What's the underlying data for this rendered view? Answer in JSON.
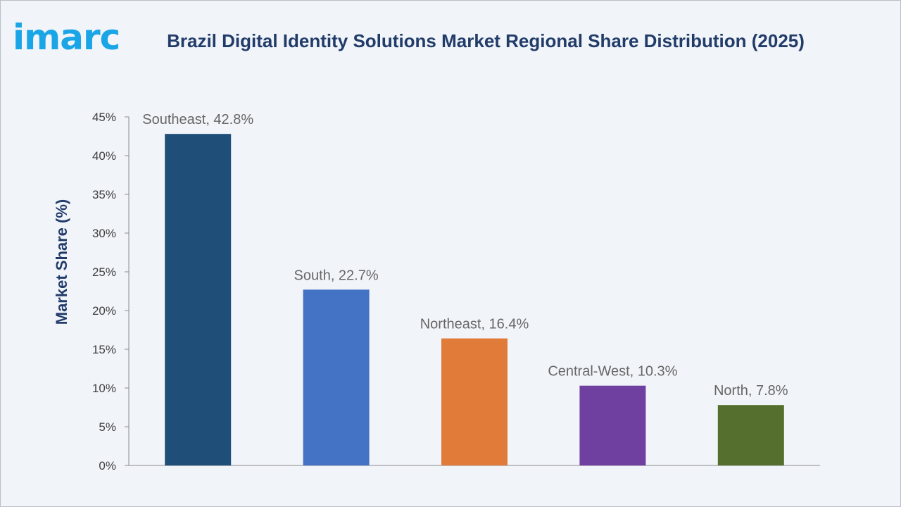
{
  "logo": {
    "text": "imarc",
    "color": "#1aa6e6"
  },
  "chart_data": {
    "type": "bar",
    "title": "Brazil Digital Identity Solutions Market Regional Share Distribution (2025)",
    "xlabel": "",
    "ylabel": "Market Share (%)",
    "ylim": [
      0,
      45
    ],
    "yticks": [
      0,
      5,
      10,
      15,
      20,
      25,
      30,
      35,
      40,
      45
    ],
    "ytick_labels": [
      "0%",
      "5%",
      "10%",
      "15%",
      "20%",
      "25%",
      "30%",
      "35%",
      "40%",
      "45%"
    ],
    "grid": false,
    "categories": [
      "Southeast",
      "South",
      "Northeast",
      "Central-West",
      "North"
    ],
    "values": [
      42.8,
      22.7,
      16.4,
      10.3,
      7.8
    ],
    "data_labels": [
      "Southeast, 42.8%",
      "South, 22.7%",
      "Northeast, 16.4%",
      "Central-West, 10.3%",
      "North, 7.8%"
    ],
    "colors": [
      "#1f4e79",
      "#4472c4",
      "#e07b39",
      "#7040a0",
      "#546f2e"
    ]
  }
}
